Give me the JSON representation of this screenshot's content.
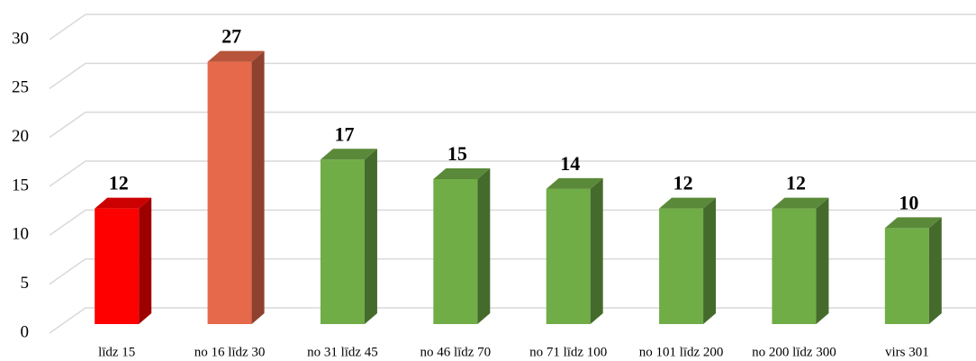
{
  "chart_data": {
    "type": "bar3d",
    "categories": [
      "līdz 15",
      "no 16 līdz 30",
      "no 31 līdz 45",
      "no 46 līdz 70",
      "no 71 līdz 100",
      "no 101 līdz 200",
      "no 200 līdz 300",
      "virs 301"
    ],
    "values": [
      12,
      27,
      17,
      15,
      14,
      12,
      12,
      10
    ],
    "colors": [
      "#ff0000",
      "#e5694a",
      "#70ad47",
      "#70ad47",
      "#70ad47",
      "#70ad47",
      "#70ad47",
      "#70ad47"
    ],
    "ylim": [
      0,
      30
    ],
    "yticks": [
      0,
      5,
      10,
      15,
      20,
      25,
      30
    ],
    "grid": true
  }
}
